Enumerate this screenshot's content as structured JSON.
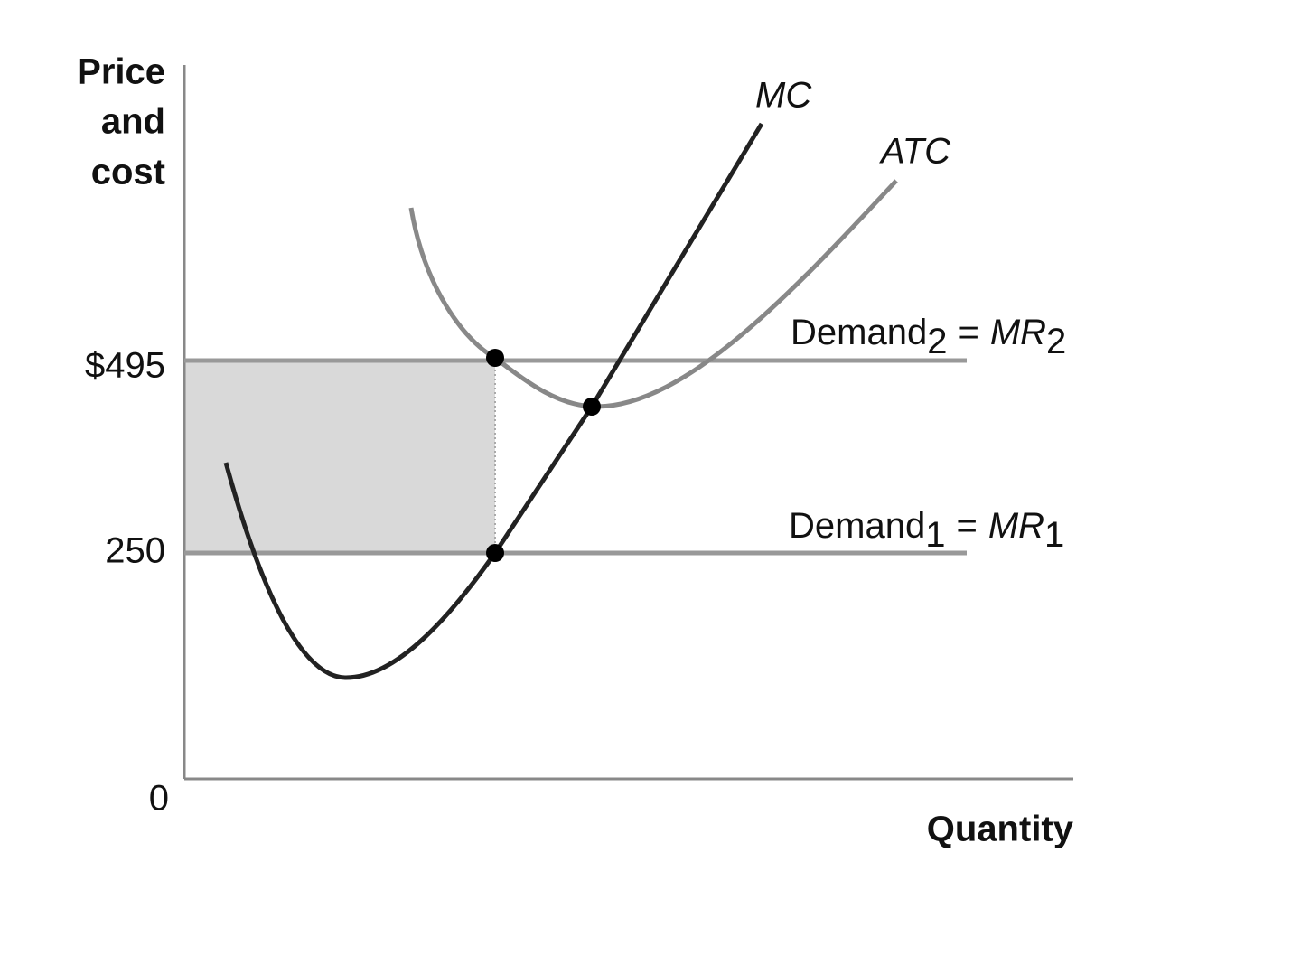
{
  "axes": {
    "y_label": [
      "Price",
      "and",
      "cost"
    ],
    "x_label": "Quantity",
    "ticks": [
      "$495",
      "250",
      "0"
    ]
  },
  "curves": {
    "mc": "MC",
    "atc": "ATC"
  },
  "demand_lines": [
    {
      "name": "Demand",
      "index": "2",
      "eq": "=",
      "mr": "MR",
      "mr_index": "2"
    },
    {
      "name": "Demand",
      "index": "1",
      "eq": "=",
      "mr": "MR",
      "mr_index": "1"
    }
  ]
}
